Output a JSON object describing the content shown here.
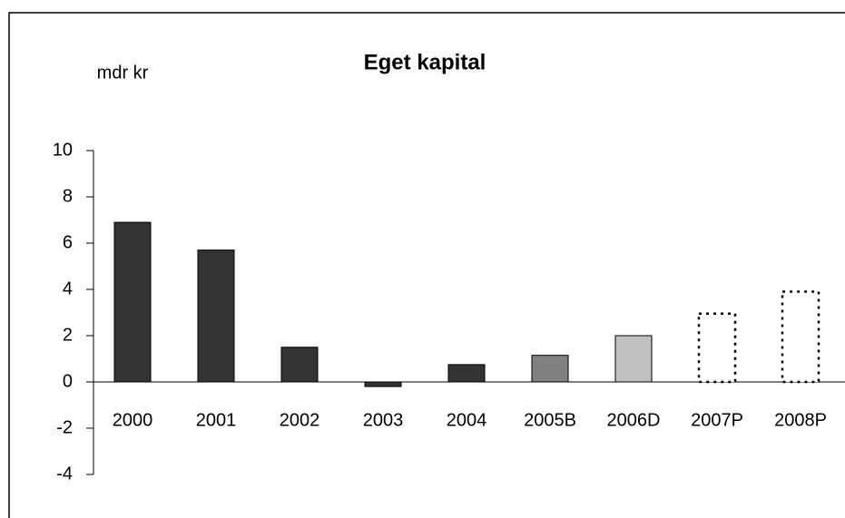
{
  "chart_data": {
    "type": "bar",
    "title": "Eget kapital",
    "y_label": "mdr kr",
    "categories": [
      "2000",
      "2001",
      "2002",
      "2003",
      "2004",
      "2005B",
      "2006D",
      "2007P",
      "2008P"
    ],
    "values": [
      6.9,
      5.7,
      1.5,
      -0.2,
      0.75,
      1.15,
      2.0,
      2.95,
      3.9
    ],
    "colors": [
      "#333333",
      "#333333",
      "#333333",
      "#333333",
      "#333333",
      "#808080",
      "#c0c0c0",
      "#ffffff",
      "#ffffff"
    ],
    "bar_styles": [
      "solid",
      "solid",
      "solid",
      "solid",
      "solid",
      "solid",
      "solid",
      "dotted",
      "dotted"
    ],
    "ylim": [
      -4,
      10
    ],
    "yticks": [
      -4,
      -2,
      0,
      2,
      4,
      6,
      8,
      10
    ],
    "grid": false
  }
}
